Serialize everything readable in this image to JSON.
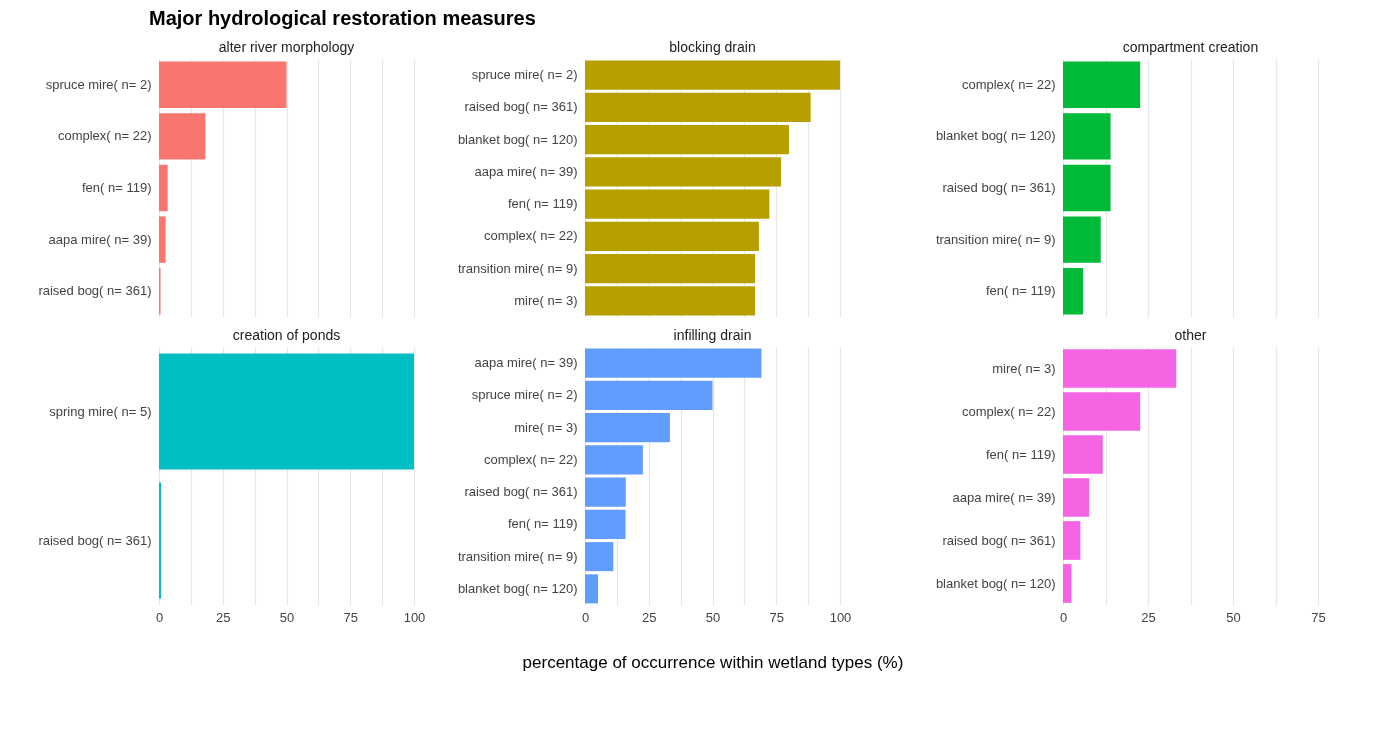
{
  "chart_data": [
    {
      "type": "bar",
      "orientation": "horizontal",
      "title": "alter river morphology",
      "annotations": [
        "Major hydrological restoration measures"
      ],
      "categories": [
        "spruce mire( n= 2)",
        "complex( n= 22)",
        "fen( n= 119)",
        "aapa mire( n= 39)",
        "raised bog( n= 361)"
      ],
      "values": [
        50,
        18.2,
        3.4,
        2.6,
        0.6
      ],
      "color": "#f8766d",
      "xlim": [
        0,
        100
      ],
      "xticks": [
        0,
        {
          "value": 12.5,
          "label": null
        },
        25,
        {
          "value": 37.5,
          "label": null
        },
        50,
        {
          "value": 62.5,
          "label": null
        },
        75,
        {
          "value": 87.5,
          "label": null
        },
        100
      ],
      "grid": "x",
      "tick_labels": "y"
    },
    {
      "type": "bar",
      "orientation": "horizontal",
      "title": "blocking drain",
      "categories": [
        "spruce mire( n= 2)",
        "raised bog( n= 361)",
        "blanket bog( n= 120)",
        "aapa mire( n= 39)",
        "fen( n= 119)",
        "complex( n= 22)",
        "transition mire( n= 9)",
        "mire( n= 3)"
      ],
      "values": [
        100,
        88.5,
        80,
        76.9,
        72.3,
        68.2,
        66.7,
        66.7
      ],
      "color": "#b79f00",
      "xlim": [
        0,
        100
      ],
      "xticks": [
        0,
        {
          "value": 12.5,
          "label": null
        },
        25,
        {
          "value": 37.5,
          "label": null
        },
        50,
        {
          "value": 62.5,
          "label": null
        },
        75,
        {
          "value": 87.5,
          "label": null
        },
        100
      ],
      "grid": "x",
      "tick_labels": "y"
    },
    {
      "type": "bar",
      "orientation": "horizontal",
      "title": "compartment creation",
      "categories": [
        "complex( n= 22)",
        "blanket bog( n= 120)",
        "raised bog( n= 361)",
        "transition mire( n= 9)",
        "fen( n= 119)"
      ],
      "values": [
        22.7,
        14,
        14,
        11.1,
        5.9
      ],
      "color": "#00ba38",
      "xlim": [
        0,
        75
      ],
      "xticks": [
        0,
        {
          "value": 12.5,
          "label": null
        },
        25,
        {
          "value": 37.5,
          "label": null
        },
        50,
        {
          "value": 62.5,
          "label": null
        },
        75
      ],
      "grid": "x",
      "tick_labels": "y"
    },
    {
      "type": "bar",
      "orientation": "horizontal",
      "title": "creation of ponds",
      "categories": [
        "spring mire( n= 5)",
        "raised bog( n= 361)"
      ],
      "values": [
        100,
        0.8
      ],
      "color": "#00bfc4",
      "xlim": [
        0,
        100
      ],
      "xticks": [
        0,
        {
          "value": 12.5,
          "label": null
        },
        25,
        {
          "value": 37.5,
          "label": null
        },
        50,
        {
          "value": 62.5,
          "label": null
        },
        75,
        {
          "value": 87.5,
          "label": null
        },
        100
      ],
      "grid": "x"
    },
    {
      "type": "bar",
      "orientation": "horizontal",
      "title": "infilling drain",
      "xlabel": "percentage of occurrence within wetland types (%)",
      "categories": [
        "aapa mire( n= 39)",
        "spruce mire( n= 2)",
        "mire( n= 3)",
        "complex( n= 22)",
        "raised bog( n= 361)",
        "fen( n= 119)",
        "transition mire( n= 9)",
        "blanket bog( n= 120)"
      ],
      "values": [
        69.2,
        50,
        33.3,
        22.7,
        16,
        15.9,
        11.1,
        5.1
      ],
      "color": "#619cff",
      "xlim": [
        0,
        100
      ],
      "xticks": [
        0,
        {
          "value": 12.5,
          "label": null
        },
        25,
        {
          "value": 37.5,
          "label": null
        },
        50,
        {
          "value": 62.5,
          "label": null
        },
        75,
        {
          "value": 87.5,
          "label": null
        },
        100
      ],
      "grid": "x"
    },
    {
      "type": "bar",
      "orientation": "horizontal",
      "title": "other",
      "categories": [
        "mire( n= 3)",
        "complex( n= 22)",
        "fen( n= 119)",
        "aapa mire( n= 39)",
        "raised bog( n= 361)",
        "blanket bog( n= 120)"
      ],
      "values": [
        33.3,
        22.7,
        11.7,
        7.7,
        5.1,
        2.5
      ],
      "color": "#f564e3",
      "xlim": [
        0,
        75
      ],
      "xticks": [
        0,
        {
          "value": 12.5,
          "label": null
        },
        25,
        {
          "value": 37.5,
          "label": null
        },
        50,
        {
          "value": 62.5,
          "label": null
        },
        75
      ],
      "grid": "x"
    }
  ]
}
